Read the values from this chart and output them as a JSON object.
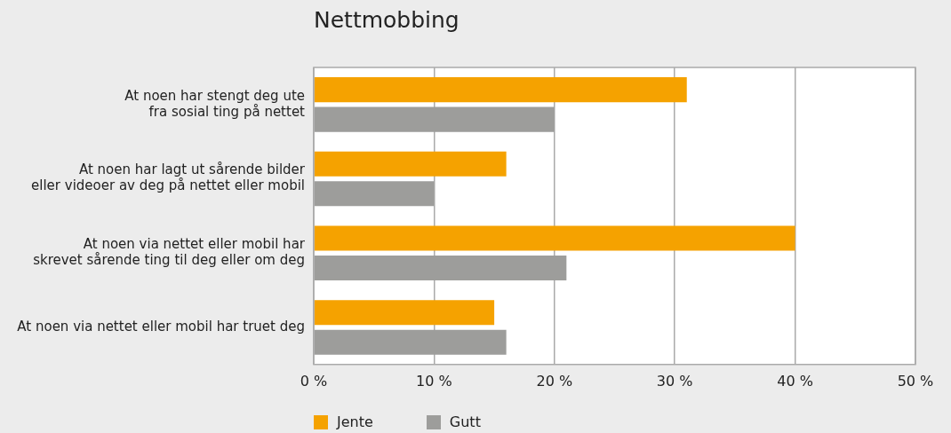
{
  "chart_data": {
    "type": "bar",
    "orientation": "horizontal",
    "title": "Nettmobbing",
    "categories": [
      "At noen har stengt deg ute\nfra sosial ting på nettet",
      "At noen har lagt ut sårende bilder\neller videoer av deg på nettet eller mobil",
      "At noen via nettet eller mobil har\nskrevet sårende ting til deg eller om deg",
      "At noen via nettet eller mobil har truet deg"
    ],
    "series": [
      {
        "name": "Jente",
        "color": "#f5a200",
        "values": [
          31,
          16,
          40,
          15
        ]
      },
      {
        "name": "Gutt",
        "color": "#9d9d9b",
        "values": [
          20,
          10,
          21,
          16
        ]
      }
    ],
    "xlim": [
      0,
      50
    ],
    "xticks": [
      {
        "value": 0,
        "label": "0 %"
      },
      {
        "value": 10,
        "label": "10 %"
      },
      {
        "value": 20,
        "label": "20 %"
      },
      {
        "value": 30,
        "label": "30 %"
      },
      {
        "value": 40,
        "label": "40 %"
      },
      {
        "value": 50,
        "label": "50 %"
      }
    ],
    "grid": "x",
    "legend": "bottom left"
  }
}
